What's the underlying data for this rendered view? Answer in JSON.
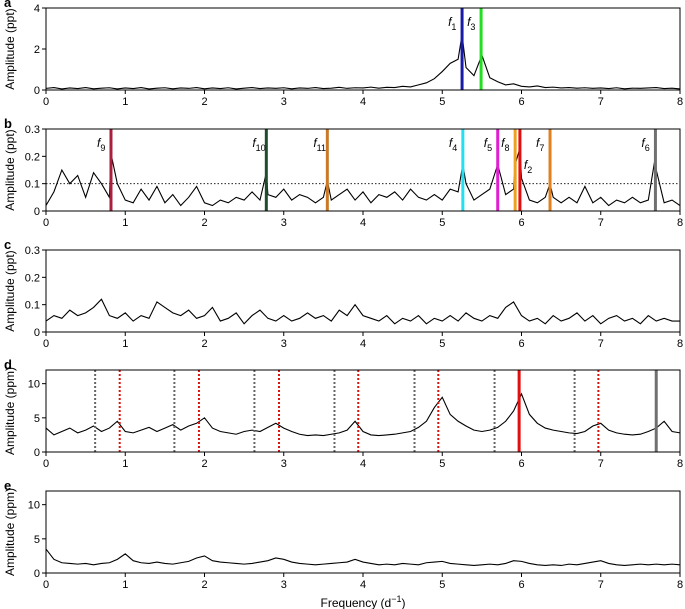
{
  "chart_data": [
    {
      "type": "line",
      "panel": "a",
      "ylabel": "Amplitude (ppt)",
      "xlim": [
        0,
        8
      ],
      "ylim": [
        0,
        4
      ],
      "xticks": [
        0,
        1,
        2,
        3,
        4,
        5,
        6,
        7,
        8
      ],
      "yticks": [
        0,
        2,
        4
      ],
      "color": "#000000",
      "x": [
        0,
        0.1,
        0.2,
        0.3,
        0.4,
        0.5,
        0.6,
        0.7,
        0.8,
        0.9,
        1,
        1.1,
        1.2,
        1.3,
        1.4,
        1.5,
        1.6,
        1.7,
        1.8,
        1.9,
        2,
        2.1,
        2.2,
        2.3,
        2.4,
        2.5,
        2.6,
        2.7,
        2.8,
        2.9,
        3,
        3.1,
        3.2,
        3.3,
        3.4,
        3.5,
        3.6,
        3.7,
        3.8,
        3.9,
        4,
        4.1,
        4.2,
        4.3,
        4.4,
        4.5,
        4.6,
        4.7,
        4.8,
        4.9,
        5,
        5.1,
        5.2,
        5.25,
        5.3,
        5.4,
        5.5,
        5.6,
        5.7,
        5.8,
        5.9,
        6,
        6.1,
        6.2,
        6.3,
        6.4,
        6.5,
        6.6,
        6.7,
        6.8,
        6.9,
        7,
        7.1,
        7.2,
        7.3,
        7.4,
        7.5,
        7.6,
        7.7,
        7.8,
        7.9,
        8
      ],
      "values": [
        0.08,
        0.12,
        0.05,
        0.1,
        0.07,
        0.12,
        0.06,
        0.09,
        0.11,
        0.05,
        0.1,
        0.07,
        0.12,
        0.05,
        0.09,
        0.11,
        0.06,
        0.1,
        0.08,
        0.12,
        0.06,
        0.1,
        0.07,
        0.11,
        0.05,
        0.09,
        0.12,
        0.07,
        0.1,
        0.08,
        0.11,
        0.06,
        0.1,
        0.08,
        0.12,
        0.07,
        0.09,
        0.13,
        0.08,
        0.11,
        0.1,
        0.14,
        0.09,
        0.13,
        0.12,
        0.18,
        0.15,
        0.25,
        0.35,
        0.55,
        0.9,
        1.3,
        1.5,
        2.7,
        1.1,
        0.7,
        1.7,
        0.6,
        0.4,
        0.25,
        0.3,
        0.18,
        0.15,
        0.2,
        0.12,
        0.14,
        0.1,
        0.12,
        0.09,
        0.11,
        0.08,
        0.1,
        0.07,
        0.11,
        0.06,
        0.09,
        0.08,
        0.1,
        0.12,
        0.07,
        0.09,
        0.05
      ],
      "lines": [
        {
          "x": 5.25,
          "color": "#1a1aa8",
          "label": "f",
          "subscript": "1"
        },
        {
          "x": 5.49,
          "color": "#22dd22",
          "label": "f",
          "subscript": "3"
        }
      ]
    },
    {
      "type": "line",
      "panel": "b",
      "ylabel": "Amplitude (ppt)",
      "xlim": [
        0,
        8
      ],
      "ylim": [
        0,
        0.3
      ],
      "xticks": [
        0,
        1,
        2,
        3,
        4,
        5,
        6,
        7,
        8
      ],
      "yticks": [
        0,
        0.1,
        0.2,
        0.3
      ],
      "color": "#000000",
      "threshold": 0.1,
      "x": [
        0,
        0.1,
        0.2,
        0.3,
        0.4,
        0.5,
        0.6,
        0.7,
        0.8,
        0.82,
        0.9,
        1,
        1.1,
        1.2,
        1.3,
        1.4,
        1.5,
        1.6,
        1.7,
        1.8,
        1.9,
        2,
        2.1,
        2.2,
        2.3,
        2.4,
        2.5,
        2.6,
        2.7,
        2.78,
        2.8,
        2.9,
        3,
        3.1,
        3.2,
        3.3,
        3.4,
        3.5,
        3.55,
        3.6,
        3.7,
        3.8,
        3.9,
        4,
        4.1,
        4.2,
        4.3,
        4.4,
        4.5,
        4.6,
        4.7,
        4.8,
        4.9,
        5,
        5.1,
        5.2,
        5.26,
        5.3,
        5.4,
        5.5,
        5.6,
        5.7,
        5.8,
        5.9,
        5.92,
        5.98,
        6,
        6.1,
        6.2,
        6.3,
        6.36,
        6.4,
        6.5,
        6.6,
        6.7,
        6.8,
        6.9,
        7,
        7.1,
        7.2,
        7.3,
        7.4,
        7.5,
        7.6,
        7.69,
        7.7,
        7.8,
        7.9,
        8
      ],
      "values": [
        0.02,
        0.07,
        0.15,
        0.1,
        0.13,
        0.05,
        0.14,
        0.1,
        0.05,
        0.21,
        0.1,
        0.04,
        0.03,
        0.08,
        0.04,
        0.09,
        0.03,
        0.06,
        0.02,
        0.05,
        0.09,
        0.03,
        0.02,
        0.04,
        0.03,
        0.05,
        0.04,
        0.07,
        0.04,
        0.14,
        0.06,
        0.05,
        0.08,
        0.04,
        0.06,
        0.05,
        0.03,
        0.05,
        0.11,
        0.04,
        0.06,
        0.08,
        0.04,
        0.07,
        0.03,
        0.06,
        0.05,
        0.07,
        0.04,
        0.08,
        0.05,
        0.04,
        0.06,
        0.04,
        0.08,
        0.07,
        0.17,
        0.1,
        0.04,
        0.06,
        0.08,
        0.17,
        0.06,
        0.08,
        0.17,
        0.23,
        0.12,
        0.04,
        0.03,
        0.05,
        0.1,
        0.05,
        0.03,
        0.05,
        0.03,
        0.09,
        0.03,
        0.05,
        0.02,
        0.04,
        0.03,
        0.05,
        0.03,
        0.04,
        0.2,
        0.15,
        0.03,
        0.04,
        0.02
      ],
      "lines": [
        {
          "x": 0.82,
          "color": "#a8203c",
          "label": "f",
          "subscript": "9"
        },
        {
          "x": 2.78,
          "color": "#1e4d2b",
          "label": "f",
          "subscript": "10"
        },
        {
          "x": 3.55,
          "color": "#c87a28",
          "label": "f",
          "subscript": "11"
        },
        {
          "x": 5.26,
          "color": "#22e0f0",
          "label": "f",
          "subscript": "4"
        },
        {
          "x": 5.7,
          "color": "#e020d0",
          "label": "f",
          "subscript": "5"
        },
        {
          "x": 5.92,
          "color": "#f0a020",
          "label": "f",
          "subscript": "8"
        },
        {
          "x": 5.98,
          "color": "#e01010",
          "label": "f",
          "subscript": "2"
        },
        {
          "x": 6.36,
          "color": "#e08020",
          "label": "f",
          "subscript": "7"
        },
        {
          "x": 7.69,
          "color": "#707070",
          "label": "f",
          "subscript": "6"
        }
      ]
    },
    {
      "type": "line",
      "panel": "c",
      "ylabel": "Amplitude (ppt)",
      "xlim": [
        0,
        8
      ],
      "ylim": [
        0,
        0.3
      ],
      "xticks": [
        0,
        1,
        2,
        3,
        4,
        5,
        6,
        7,
        8
      ],
      "yticks": [
        0,
        0.1,
        0.2,
        0.3
      ],
      "color": "#000000",
      "x": [
        0,
        0.1,
        0.2,
        0.3,
        0.4,
        0.5,
        0.6,
        0.7,
        0.8,
        0.9,
        1,
        1.1,
        1.2,
        1.3,
        1.4,
        1.5,
        1.6,
        1.7,
        1.8,
        1.9,
        2,
        2.1,
        2.2,
        2.3,
        2.4,
        2.5,
        2.6,
        2.7,
        2.8,
        2.9,
        3,
        3.1,
        3.2,
        3.3,
        3.4,
        3.5,
        3.6,
        3.7,
        3.8,
        3.9,
        4,
        4.1,
        4.2,
        4.3,
        4.4,
        4.5,
        4.6,
        4.7,
        4.8,
        4.9,
        5,
        5.1,
        5.2,
        5.3,
        5.4,
        5.5,
        5.6,
        5.7,
        5.8,
        5.9,
        6,
        6.1,
        6.2,
        6.3,
        6.4,
        6.5,
        6.6,
        6.7,
        6.8,
        6.9,
        7,
        7.1,
        7.2,
        7.3,
        7.4,
        7.5,
        7.6,
        7.7,
        7.8,
        7.9,
        8
      ],
      "values": [
        0.04,
        0.06,
        0.05,
        0.08,
        0.06,
        0.07,
        0.09,
        0.12,
        0.06,
        0.05,
        0.07,
        0.04,
        0.06,
        0.05,
        0.11,
        0.09,
        0.07,
        0.06,
        0.08,
        0.05,
        0.06,
        0.09,
        0.04,
        0.05,
        0.07,
        0.03,
        0.06,
        0.08,
        0.05,
        0.04,
        0.06,
        0.04,
        0.05,
        0.07,
        0.05,
        0.06,
        0.04,
        0.08,
        0.06,
        0.1,
        0.06,
        0.05,
        0.04,
        0.06,
        0.03,
        0.05,
        0.04,
        0.06,
        0.03,
        0.05,
        0.04,
        0.06,
        0.04,
        0.07,
        0.05,
        0.04,
        0.06,
        0.05,
        0.09,
        0.11,
        0.06,
        0.04,
        0.05,
        0.03,
        0.06,
        0.04,
        0.05,
        0.07,
        0.04,
        0.06,
        0.03,
        0.05,
        0.06,
        0.04,
        0.05,
        0.03,
        0.06,
        0.04,
        0.05,
        0.04,
        0.04
      ]
    },
    {
      "type": "line",
      "panel": "d",
      "ylabel": "Amplitude (ppm)",
      "xlim": [
        0,
        8
      ],
      "ylim": [
        0,
        12
      ],
      "xticks": [
        0,
        1,
        2,
        3,
        4,
        5,
        6,
        7,
        8
      ],
      "yticks": [
        0,
        5,
        10
      ],
      "color": "#000000",
      "x": [
        0,
        0.1,
        0.2,
        0.3,
        0.4,
        0.5,
        0.6,
        0.7,
        0.8,
        0.9,
        1,
        1.1,
        1.2,
        1.3,
        1.4,
        1.5,
        1.6,
        1.7,
        1.8,
        1.9,
        2,
        2.1,
        2.2,
        2.3,
        2.4,
        2.5,
        2.6,
        2.7,
        2.8,
        2.9,
        3,
        3.1,
        3.2,
        3.3,
        3.4,
        3.5,
        3.6,
        3.7,
        3.8,
        3.9,
        4,
        4.1,
        4.2,
        4.3,
        4.4,
        4.5,
        4.6,
        4.7,
        4.8,
        4.9,
        5,
        5.1,
        5.2,
        5.3,
        5.4,
        5.5,
        5.6,
        5.7,
        5.8,
        5.9,
        6,
        6.1,
        6.2,
        6.3,
        6.4,
        6.5,
        6.6,
        6.7,
        6.8,
        6.9,
        7,
        7.1,
        7.2,
        7.3,
        7.4,
        7.5,
        7.6,
        7.7,
        7.8,
        7.9,
        8
      ],
      "values": [
        3.5,
        2.5,
        3,
        3.5,
        2.8,
        3.2,
        3.8,
        3,
        3.5,
        4.5,
        3,
        2.8,
        3.2,
        3.6,
        3,
        3.5,
        4,
        3.2,
        3.8,
        4.2,
        5,
        3.5,
        3,
        2.8,
        2.6,
        3,
        3.2,
        3,
        3.6,
        4.2,
        3.5,
        3,
        2.6,
        2.4,
        2.5,
        2.4,
        2.6,
        2.8,
        3.2,
        4.5,
        3,
        2.5,
        2.4,
        2.5,
        2.6,
        2.8,
        3,
        3.6,
        4.5,
        6.5,
        8,
        5.5,
        4.5,
        3.8,
        3.2,
        3,
        3.2,
        3.6,
        4.5,
        6,
        8.5,
        5.5,
        4.2,
        3.5,
        3.2,
        3,
        2.8,
        2.7,
        3,
        3.8,
        4.2,
        3.2,
        2.8,
        2.6,
        2.5,
        2.6,
        3,
        3.5,
        4.5,
        3,
        2.8
      ],
      "lines": [
        {
          "x": 0.62,
          "color": "#666666",
          "dash": true
        },
        {
          "x": 1.62,
          "color": "#666666",
          "dash": true
        },
        {
          "x": 2.63,
          "color": "#666666",
          "dash": true
        },
        {
          "x": 3.64,
          "color": "#666666",
          "dash": true
        },
        {
          "x": 4.65,
          "color": "#666666",
          "dash": true
        },
        {
          "x": 5.66,
          "color": "#666666",
          "dash": true
        },
        {
          "x": 6.67,
          "color": "#666666",
          "dash": true
        },
        {
          "x": 0.93,
          "color": "#e01010",
          "dash": true
        },
        {
          "x": 1.93,
          "color": "#e01010",
          "dash": true
        },
        {
          "x": 2.94,
          "color": "#e01010",
          "dash": true
        },
        {
          "x": 3.94,
          "color": "#e01010",
          "dash": true
        },
        {
          "x": 4.95,
          "color": "#e01010",
          "dash": true
        },
        {
          "x": 6.97,
          "color": "#e01010",
          "dash": true
        },
        {
          "x": 5.97,
          "color": "#e01010"
        },
        {
          "x": 7.7,
          "color": "#707070"
        }
      ]
    },
    {
      "type": "line",
      "panel": "e",
      "ylabel": "Amplitude (ppm)",
      "xlim": [
        0,
        8
      ],
      "ylim": [
        0,
        12
      ],
      "xticks": [
        0,
        1,
        2,
        3,
        4,
        5,
        6,
        7,
        8
      ],
      "yticks": [
        0,
        5,
        10
      ],
      "color": "#000000",
      "xlabel": "Frequency (d",
      "xlabel_sup": "−1",
      "xlabel_close": ")",
      "x": [
        0,
        0.1,
        0.2,
        0.3,
        0.4,
        0.5,
        0.6,
        0.7,
        0.8,
        0.9,
        1,
        1.1,
        1.2,
        1.3,
        1.4,
        1.5,
        1.6,
        1.7,
        1.8,
        1.9,
        2,
        2.1,
        2.2,
        2.3,
        2.4,
        2.5,
        2.6,
        2.7,
        2.8,
        2.9,
        3,
        3.1,
        3.2,
        3.3,
        3.4,
        3.5,
        3.6,
        3.7,
        3.8,
        3.9,
        4,
        4.1,
        4.2,
        4.3,
        4.4,
        4.5,
        4.6,
        4.7,
        4.8,
        4.9,
        5,
        5.1,
        5.2,
        5.3,
        5.4,
        5.5,
        5.6,
        5.7,
        5.8,
        5.9,
        6,
        6.1,
        6.2,
        6.3,
        6.4,
        6.5,
        6.6,
        6.7,
        6.8,
        6.9,
        7,
        7.1,
        7.2,
        7.3,
        7.4,
        7.5,
        7.6,
        7.7,
        7.8,
        7.9,
        8
      ],
      "values": [
        3.5,
        2,
        1.5,
        1.4,
        1.3,
        1.4,
        1.2,
        1.4,
        1.5,
        2,
        2.8,
        1.8,
        1.5,
        1.4,
        1.6,
        1.4,
        1.3,
        1.5,
        1.7,
        2.2,
        2.5,
        1.8,
        1.6,
        1.5,
        1.4,
        1.3,
        1.4,
        1.6,
        1.8,
        2.2,
        2,
        1.6,
        1.4,
        1.3,
        1.2,
        1.3,
        1.4,
        1.5,
        1.6,
        2,
        1.6,
        1.4,
        1.2,
        1.3,
        1.2,
        1.4,
        1.3,
        1.2,
        1.5,
        1.6,
        1.7,
        1.4,
        1.3,
        1.2,
        1.1,
        1.2,
        1.3,
        1.2,
        1.4,
        1.8,
        1.7,
        1.4,
        1.2,
        1.1,
        1.2,
        1.1,
        1.3,
        1.2,
        1.4,
        1.6,
        1.8,
        1.4,
        1.2,
        1.1,
        1.2,
        1.3,
        1.2,
        1.3,
        1.2,
        1.3,
        1.2
      ]
    }
  ]
}
